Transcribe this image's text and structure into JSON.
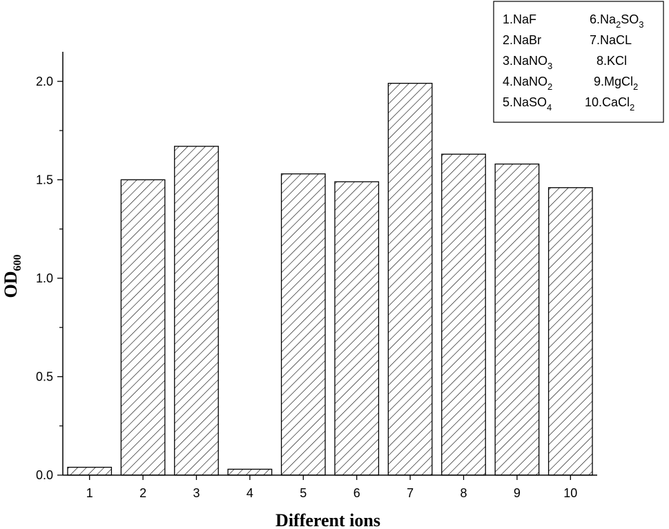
{
  "chart_data": {
    "type": "bar",
    "categories": [
      "1",
      "2",
      "3",
      "4",
      "5",
      "6",
      "7",
      "8",
      "9",
      "10"
    ],
    "values": [
      0.04,
      1.5,
      1.67,
      0.03,
      1.53,
      1.49,
      1.99,
      1.63,
      1.58,
      1.46
    ],
    "title": "",
    "xlabel": "Different ions",
    "ylabel": "OD",
    "ylabel_sub": "600",
    "ylim": [
      0,
      2.15
    ],
    "yticks": [
      "0.0",
      "0.5",
      "1.0",
      "1.5",
      "2.0"
    ],
    "ytick_values": [
      0,
      0.5,
      1.0,
      1.5,
      2.0
    ],
    "bar_fill": "hatched",
    "legend": {
      "placement": "top-right",
      "entries": [
        {
          "num": "1.",
          "main": "NaF",
          "parts": [
            [
              "NaF",
              ""
            ]
          ]
        },
        {
          "num": "6.",
          "main": "Na2SO3",
          "parts": [
            [
              "Na",
              ""
            ],
            [
              "2",
              "sub"
            ],
            [
              "SO",
              ""
            ],
            [
              "3",
              "sub"
            ]
          ]
        },
        {
          "num": "2.",
          "main": "NaBr",
          "parts": [
            [
              "NaBr",
              ""
            ]
          ]
        },
        {
          "num": "7.",
          "main": "NaCL",
          "parts": [
            [
              "NaCL",
              ""
            ]
          ]
        },
        {
          "num": "3.",
          "main": "NaNO3",
          "parts": [
            [
              "NaNO",
              ""
            ],
            [
              "3",
              "sub"
            ]
          ]
        },
        {
          "num": "8.",
          "main": "KCl",
          "parts": [
            [
              "KCl",
              ""
            ]
          ]
        },
        {
          "num": "4.",
          "main": "NaNO2",
          "parts": [
            [
              "NaNO",
              ""
            ],
            [
              "2",
              "sub"
            ]
          ]
        },
        {
          "num": "9.",
          "main": "MgCl2",
          "parts": [
            [
              "MgCl",
              ""
            ],
            [
              "2",
              "sub"
            ]
          ]
        },
        {
          "num": "5.",
          "main": "NaSO4",
          "parts": [
            [
              "NaSO",
              ""
            ],
            [
              "4",
              "sub"
            ]
          ]
        },
        {
          "num": "10.",
          "main": "CaCl2",
          "parts": [
            [
              "CaCl",
              ""
            ],
            [
              "2",
              "sub"
            ]
          ]
        }
      ]
    }
  }
}
